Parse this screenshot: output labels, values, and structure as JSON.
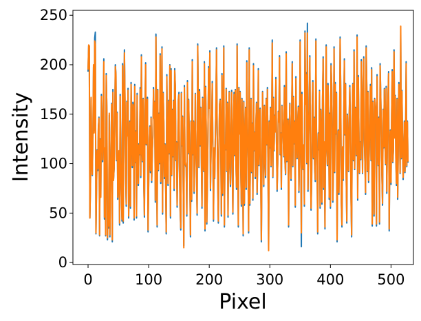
{
  "chart_data": {
    "type": "line",
    "title": "",
    "xlabel": "Pixel",
    "ylabel": "Intensity",
    "xlim": [
      -25,
      537
    ],
    "ylim": [
      -2,
      255
    ],
    "x_ticks": [
      0,
      100,
      200,
      300,
      400,
      500
    ],
    "y_ticks": [
      0,
      50,
      100,
      150,
      200,
      250
    ],
    "grid": false,
    "legend": "none",
    "series": [
      {
        "color": "#1f77b4",
        "x_start": 0,
        "x_step": 1,
        "values": [
          193,
          219,
          219,
          45,
          81,
          166,
          102,
          88,
          126,
          198,
          133,
          227,
          233,
          29,
          76,
          114,
          93,
          137,
          147,
          27,
          125,
          68,
          170,
          134,
          102,
          143,
          206,
          44,
          115,
          27,
          191,
          154,
          23,
          52,
          35,
          149,
          26,
          76,
          124,
          161,
          21,
          175,
          84,
          95,
          139,
          200,
          191,
          103,
          152,
          64,
          85,
          112,
          38,
          170,
          102,
          65,
          42,
          201,
          40,
          147,
          215,
          162,
          88,
          57,
          163,
          130,
          176,
          45,
          87,
          143,
          55,
          182,
          136,
          96,
          162,
          158,
          43,
          180,
          101,
          133,
          45,
          171,
          106,
          78,
          120,
          109,
          177,
          86,
          210,
          114,
          102,
          166,
          79,
          46,
          154,
          202,
          119,
          155,
          167,
          31,
          79,
          121,
          138,
          91,
          147,
          81,
          112,
          129,
          177,
          147,
          163,
          61,
          231,
          114,
          36,
          175,
          93,
          151,
          100,
          211,
          80,
          131,
          218,
          49,
          172,
          143,
          85,
          120,
          81,
          29,
          190,
          107,
          78,
          164,
          110,
          200,
          45,
          196,
          88,
          155,
          107,
          164,
          73,
          196,
          179,
          103,
          122,
          56,
          104,
          165,
          172,
          88,
          52,
          33,
          172,
          118,
          148,
          82,
          17,
          179,
          101,
          98,
          96,
          47,
          184,
          110,
          165,
          131,
          82,
          26,
          143,
          62,
          205,
          109,
          143,
          70,
          105,
          171,
          116,
          90,
          48,
          221,
          155,
          96,
          175,
          118,
          157,
          104,
          55,
          167,
          104,
          92,
          203,
          32,
          178,
          134,
          39,
          85,
          138,
          198,
          157,
          214,
          73,
          112,
          136,
          183,
          112,
          42,
          115,
          85,
          126,
          160,
          217,
          140,
          86,
          40,
          114,
          160,
          165,
          121,
          47,
          191,
          68,
          131,
          219,
          36,
          118,
          114,
          176,
          92,
          162,
          46,
          130,
          173,
          96,
          77,
          139,
          174,
          93,
          49,
          144,
          172,
          108,
          175,
          103,
          74,
          221,
          121,
          36,
          177,
          131,
          173,
          95,
          57,
          166,
          122,
          27,
          163,
          58,
          117,
          157,
          74,
          204,
          136,
          103,
          30,
          217,
          58,
          107,
          166,
          91,
          141,
          63,
          201,
          113,
          132,
          85,
          141,
          162,
          69,
          105,
          196,
          98,
          132,
          156,
          82,
          21,
          98,
          173,
          132,
          77,
          159,
          113,
          86,
          166,
          119,
          177,
          95,
          14,
          143,
          116,
          157,
          97,
          131,
          225,
          86,
          167,
          113,
          149,
          133,
          187,
          121,
          72,
          100,
          153,
          143,
          209,
          109,
          131,
          74,
          159,
          141,
          128,
          107,
          179,
          102,
          89,
          213,
          102,
          116,
          145,
          36,
          128,
          161,
          112,
          83,
          148,
          203,
          97,
          168,
          120,
          143,
          56,
          188,
          134,
          105,
          141,
          158,
          71,
          112,
          225,
          134,
          16,
          172,
          110,
          94,
          118,
          57,
          234,
          161,
          192,
          100,
          242,
          72,
          130,
          155,
          209,
          110,
          53,
          81,
          159,
          184,
          105,
          147,
          98,
          82,
          226,
          131,
          98,
          29,
          131,
          114,
          174,
          55,
          155,
          132,
          59,
          167,
          208,
          74,
          121,
          34,
          146,
          220,
          113,
          98,
          181,
          154,
          64,
          151,
          55,
          201,
          181,
          137,
          61,
          101,
          218,
          91,
          182,
          130,
          172,
          21,
          104,
          134,
          69,
          119,
          228,
          173,
          60,
          36,
          116,
          83,
          145,
          206,
          129,
          181,
          90,
          40,
          150,
          119,
          92,
          148,
          179,
          129,
          64,
          26,
          145,
          181,
          103,
          215,
          94,
          157,
          144,
          108,
          230,
          63,
          189,
          133,
          90,
          122,
          104,
          205,
          157,
          90,
          169,
          208,
          124,
          100,
          69,
          219,
          178,
          92,
          173,
          81,
          111,
          145,
          180,
          103,
          197,
          37,
          163,
          126,
          47,
          166,
          161,
          152,
          37,
          190,
          124,
          98,
          147,
          39,
          201,
          170,
          136,
          88,
          58,
          155,
          116,
          176,
          121,
          99,
          178,
          70,
          127,
          166,
          193,
          32,
          110,
          134,
          79,
          149,
          195,
          101,
          114,
          215,
          127,
          169,
          105,
          78,
          166,
          64,
          119,
          182,
          144,
          90,
          233,
          105,
          174,
          128,
          84,
          108,
          143,
          91,
          122,
          203,
          97,
          143,
          101
        ]
      },
      {
        "color": "#ff7f0e",
        "x_start": 0,
        "x_step": 1,
        "values": [
          195,
          220,
          219,
          45,
          79,
          167,
          101,
          89,
          128,
          200,
          131,
          224,
          220,
          30,
          78,
          113,
          95,
          136,
          146,
          28,
          124,
          66,
          168,
          132,
          104,
          141,
          203,
          46,
          116,
          28,
          189,
          155,
          25,
          50,
          37,
          151,
          28,
          74,
          122,
          160,
          23,
          172,
          83,
          96,
          138,
          198,
          190,
          104,
          151,
          66,
          84,
          113,
          40,
          168,
          101,
          67,
          44,
          199,
          42,
          148,
          212,
          160,
          89,
          59,
          162,
          128,
          174,
          47,
          88,
          142,
          57,
          180,
          135,
          98,
          160,
          157,
          45,
          178,
          102,
          132,
          47,
          169,
          107,
          80,
          119,
          110,
          175,
          88,
          208,
          115,
          103,
          165,
          81,
          48,
          153,
          200,
          120,
          154,
          165,
          33,
          81,
          120,
          137,
          93,
          146,
          83,
          113,
          128,
          175,
          146,
          162,
          63,
          228,
          115,
          38,
          174,
          94,
          150,
          101,
          209,
          82,
          130,
          216,
          51,
          171,
          142,
          87,
          119,
          83,
          31,
          188,
          108,
          80,
          163,
          111,
          199,
          47,
          194,
          89,
          154,
          108,
          163,
          75,
          194,
          178,
          104,
          121,
          58,
          105,
          164,
          170,
          89,
          54,
          35,
          171,
          119,
          147,
          84,
          15,
          177,
          102,
          99,
          97,
          49,
          182,
          111,
          164,
          130,
          84,
          28,
          142,
          64,
          203,
          110,
          142,
          72,
          106,
          170,
          117,
          91,
          50,
          219,
          154,
          97,
          173,
          119,
          156,
          105,
          57,
          166,
          105,
          93,
          201,
          34,
          177,
          133,
          41,
          86,
          137,
          196,
          156,
          212,
          75,
          113,
          135,
          181,
          113,
          44,
          116,
          86,
          125,
          159,
          215,
          139,
          87,
          42,
          115,
          159,
          164,
          122,
          49,
          189,
          70,
          130,
          217,
          38,
          119,
          115,
          175,
          93,
          161,
          48,
          129,
          172,
          97,
          79,
          138,
          172,
          94,
          51,
          143,
          170,
          109,
          174,
          104,
          76,
          219,
          122,
          38,
          176,
          130,
          172,
          96,
          59,
          165,
          121,
          29,
          162,
          60,
          118,
          156,
          76,
          202,
          135,
          104,
          32,
          215,
          60,
          108,
          165,
          92,
          140,
          65,
          199,
          114,
          131,
          87,
          140,
          161,
          71,
          106,
          194,
          99,
          131,
          155,
          84,
          23,
          99,
          172,
          131,
          79,
          158,
          114,
          88,
          165,
          120,
          175,
          96,
          12,
          142,
          117,
          156,
          98,
          130,
          222,
          87,
          166,
          114,
          148,
          132,
          185,
          122,
          74,
          101,
          152,
          142,
          207,
          110,
          130,
          76,
          158,
          140,
          127,
          108,
          177,
          103,
          90,
          211,
          103,
          117,
          144,
          38,
          127,
          160,
          113,
          85,
          147,
          201,
          98,
          167,
          121,
          142,
          58,
          186,
          135,
          106,
          140,
          157,
          73,
          113,
          223,
          133,
          30,
          170,
          111,
          95,
          119,
          59,
          232,
          160,
          190,
          101,
          232,
          74,
          129,
          154,
          207,
          111,
          55,
          82,
          158,
          182,
          106,
          146,
          99,
          84,
          224,
          130,
          99,
          31,
          130,
          115,
          173,
          57,
          154,
          131,
          61,
          166,
          206,
          76,
          122,
          36,
          145,
          218,
          114,
          99,
          179,
          153,
          66,
          150,
          57,
          199,
          180,
          136,
          63,
          102,
          216,
          92,
          180,
          131,
          171,
          23,
          105,
          133,
          71,
          120,
          226,
          172,
          62,
          38,
          117,
          85,
          144,
          204,
          130,
          180,
          91,
          42,
          149,
          120,
          93,
          147,
          177,
          130,
          66,
          28,
          144,
          180,
          104,
          213,
          95,
          156,
          143,
          109,
          228,
          65,
          187,
          132,
          91,
          121,
          105,
          203,
          156,
          91,
          168,
          206,
          125,
          101,
          71,
          217,
          177,
          93,
          172,
          83,
          112,
          144,
          178,
          104,
          195,
          39,
          162,
          127,
          49,
          165,
          160,
          151,
          39,
          188,
          125,
          99,
          146,
          41,
          199,
          169,
          135,
          89,
          60,
          154,
          117,
          175,
          122,
          100,
          176,
          72,
          126,
          165,
          191,
          34,
          111,
          133,
          81,
          148,
          193,
          102,
          115,
          213,
          126,
          168,
          106,
          80,
          165,
          66,
          120,
          180,
          143,
          91,
          239,
          106,
          173,
          127,
          86,
          109,
          142,
          92,
          121,
          201,
          98,
          142,
          102
        ]
      }
    ]
  }
}
